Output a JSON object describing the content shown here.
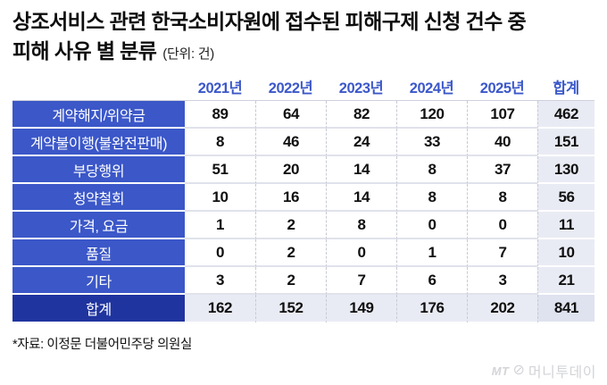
{
  "title": {
    "line1": "상조서비스 관련 한국소비자원에 접수된 피해구제 신청 건수 중",
    "line2": "피해 사유 별 분류",
    "unit": "(단위: 건)"
  },
  "chart_data": {
    "type": "table",
    "title": "상조서비스 관련 한국소비자원에 접수된 피해구제 신청 건수 중 피해 사유 별 분류",
    "unit": "건",
    "columns": [
      "2021년",
      "2022년",
      "2023년",
      "2024년",
      "2025년",
      "합계"
    ],
    "series": [
      {
        "name": "계약해지/위약금",
        "values": [
          89,
          64,
          82,
          120,
          107
        ],
        "total": 462
      },
      {
        "name": "계약불이행(불완전판매)",
        "values": [
          8,
          46,
          24,
          33,
          40
        ],
        "total": 151
      },
      {
        "name": "부당행위",
        "values": [
          51,
          20,
          14,
          8,
          37
        ],
        "total": 130
      },
      {
        "name": "청약철회",
        "values": [
          10,
          16,
          14,
          8,
          8
        ],
        "total": 56
      },
      {
        "name": "가격, 요금",
        "values": [
          1,
          2,
          8,
          0,
          0
        ],
        "total": 11
      },
      {
        "name": "품질",
        "values": [
          0,
          2,
          0,
          1,
          7
        ],
        "total": 10
      },
      {
        "name": "기타",
        "values": [
          3,
          2,
          7,
          6,
          3
        ],
        "total": 21
      }
    ],
    "totals_row": {
      "name": "합계",
      "values": [
        162,
        152,
        149,
        176,
        202
      ],
      "total": 841
    }
  },
  "table": {
    "col_headers": [
      "2021년",
      "2022년",
      "2023년",
      "2024년",
      "2025년",
      "합계"
    ],
    "rows": [
      {
        "label": "계약해지/위약금",
        "values": [
          89,
          64,
          82,
          120,
          107
        ],
        "total": 462
      },
      {
        "label": "계약불이행(불완전판매)",
        "values": [
          8,
          46,
          24,
          33,
          40
        ],
        "total": 151
      },
      {
        "label": "부당행위",
        "values": [
          51,
          20,
          14,
          8,
          37
        ],
        "total": 130
      },
      {
        "label": "청약철회",
        "values": [
          10,
          16,
          14,
          8,
          8
        ],
        "total": 56
      },
      {
        "label": "가격, 요금",
        "values": [
          1,
          2,
          8,
          0,
          0
        ],
        "total": 11
      },
      {
        "label": "품질",
        "values": [
          0,
          2,
          0,
          1,
          7
        ],
        "total": 10
      },
      {
        "label": "기타",
        "values": [
          3,
          2,
          7,
          6,
          3
        ],
        "total": 21
      }
    ],
    "total_row": {
      "label": "합계",
      "values": [
        162,
        152,
        149,
        176,
        202
      ],
      "total": 841
    }
  },
  "footer": {
    "source": "*자료: 이정문 더불어민주당 의원실"
  },
  "logo": {
    "mt": "MT",
    "mark": "⊘",
    "name": "머니투데이"
  },
  "colors": {
    "label_blue": "#3b57c8",
    "total_navy": "#20349f",
    "header_text_blue": "#3c58c9",
    "total_col_bg": "#e9ebf4",
    "grand_total_bg": "#dfe2ef",
    "logo_gray": "#d3d4d8"
  }
}
